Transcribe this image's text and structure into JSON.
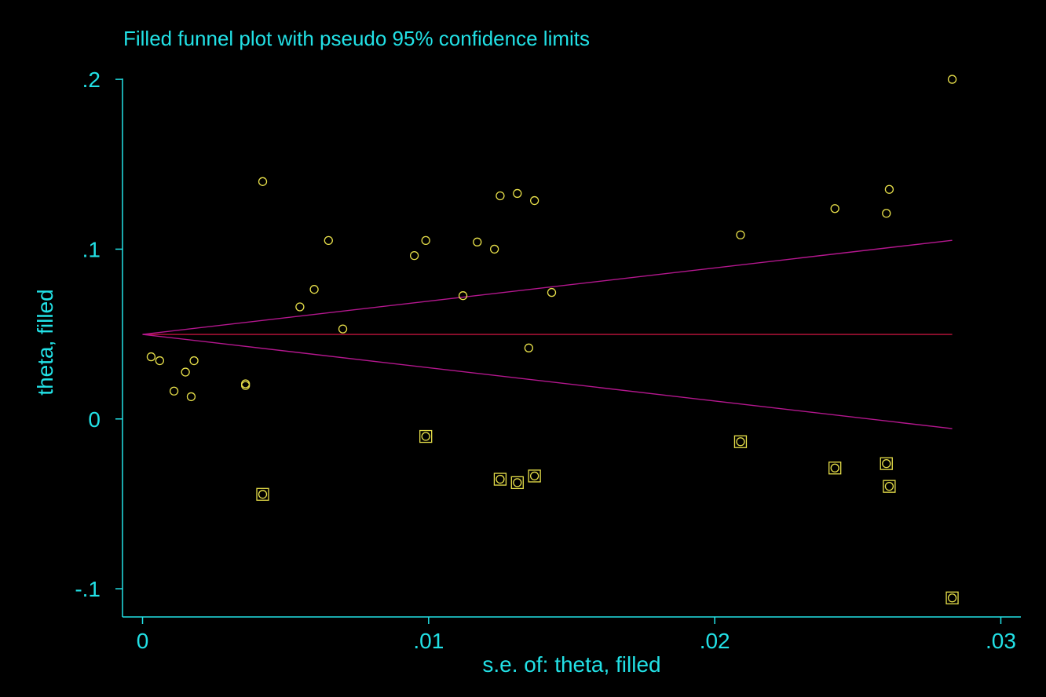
{
  "chart_data": {
    "type": "scatter",
    "title": "Filled funnel plot with pseudo 95% confidence limits",
    "xlabel": "s.e. of: theta, filled",
    "ylabel": "theta, filled",
    "xlim": [
      -0.0007,
      0.0307
    ],
    "ylim": [
      -0.1166,
      0.2005
    ],
    "x_ticks": [
      {
        "value": 0,
        "label": "0"
      },
      {
        "value": 0.01,
        "label": ".01"
      },
      {
        "value": 0.02,
        "label": ".02"
      },
      {
        "value": 0.03,
        "label": ".03"
      }
    ],
    "y_ticks": [
      {
        "value": -0.1,
        "label": "-.1"
      },
      {
        "value": 0,
        "label": "0"
      },
      {
        "value": 0.1,
        "label": ".1"
      },
      {
        "value": 0.2,
        "label": ".2"
      }
    ],
    "grid": false,
    "legend": "none",
    "colors": {
      "background": "#000000",
      "axis": "#22e1e6",
      "marker": "#e8e04a",
      "pooled_line": "#c0143c",
      "confidence_limits": "#b4178e"
    },
    "pooled_estimate": 0.0498,
    "confidence_limits": {
      "se_range": [
        0,
        0.0283
      ],
      "lower_at_max_se": -0.0057,
      "upper_at_max_se": 0.1052
    },
    "observed_studies": {
      "marker": "circle",
      "x": [
        0.0003,
        0.0006,
        0.0011,
        0.0015,
        0.0017,
        0.0018,
        0.0036,
        0.0036,
        0.0042,
        0.0055,
        0.006,
        0.0065,
        0.007,
        0.0095,
        0.0099,
        0.0112,
        0.0117,
        0.0123,
        0.0125,
        0.0131,
        0.0135,
        0.0137,
        0.0143,
        0.0209,
        0.0242,
        0.026,
        0.0261,
        0.0283
      ],
      "y": [
        0.0366,
        0.0343,
        0.0164,
        0.0276,
        0.0131,
        0.0343,
        0.0197,
        0.0207,
        0.1398,
        0.066,
        0.0763,
        0.1051,
        0.053,
        0.0962,
        0.1051,
        0.0726,
        0.1042,
        0.1,
        0.1314,
        0.1328,
        0.0418,
        0.1286,
        0.0745,
        0.1084,
        0.1239,
        0.1211,
        0.1352,
        0.2
      ]
    },
    "filled_studies": {
      "marker": "circle-in-square",
      "x": [
        0.0042,
        0.0099,
        0.0125,
        0.0131,
        0.0137,
        0.0209,
        0.0242,
        0.026,
        0.0261,
        0.0283
      ],
      "y": [
        -0.0444,
        -0.0103,
        -0.0355,
        -0.0375,
        -0.0336,
        -0.0134,
        -0.0289,
        -0.0263,
        -0.0397,
        -0.1054
      ]
    }
  }
}
